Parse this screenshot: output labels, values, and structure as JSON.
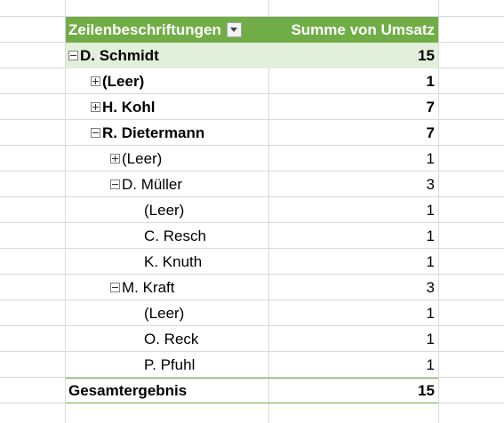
{
  "pivot": {
    "header": {
      "row_label": "Zeilenbeschriftungen",
      "value_label": "Summe von Umsatz"
    },
    "rows": [
      {
        "label": "D. Schmidt",
        "value": "15",
        "level": 0,
        "toggle": "minus"
      },
      {
        "label": "(Leer)",
        "value": "1",
        "level": 1,
        "toggle": "plus"
      },
      {
        "label": "H. Kohl",
        "value": "7",
        "level": 1,
        "toggle": "plus"
      },
      {
        "label": "R. Dietermann",
        "value": "7",
        "level": 1,
        "toggle": "minus"
      },
      {
        "label": "(Leer)",
        "value": "1",
        "level": 2,
        "toggle": "plus"
      },
      {
        "label": "D. Müller",
        "value": "3",
        "level": 2,
        "toggle": "minus"
      },
      {
        "label": "(Leer)",
        "value": "1",
        "level": 3,
        "toggle": "none"
      },
      {
        "label": "C. Resch",
        "value": "1",
        "level": 3,
        "toggle": "none"
      },
      {
        "label": "K. Knuth",
        "value": "1",
        "level": 3,
        "toggle": "none"
      },
      {
        "label": "M. Kraft",
        "value": "3",
        "level": 2,
        "toggle": "minus"
      },
      {
        "label": "(Leer)",
        "value": "1",
        "level": 3,
        "toggle": "none"
      },
      {
        "label": "O. Reck",
        "value": "1",
        "level": 3,
        "toggle": "none"
      },
      {
        "label": "P. Pfuhl",
        "value": "1",
        "level": 3,
        "toggle": "none"
      }
    ],
    "total": {
      "label": "Gesamtergebnis",
      "value": "15"
    }
  },
  "colors": {
    "header_bg": "#70ad47",
    "level0_bg": "#e2efda",
    "gridline": "#d9d9d9"
  }
}
